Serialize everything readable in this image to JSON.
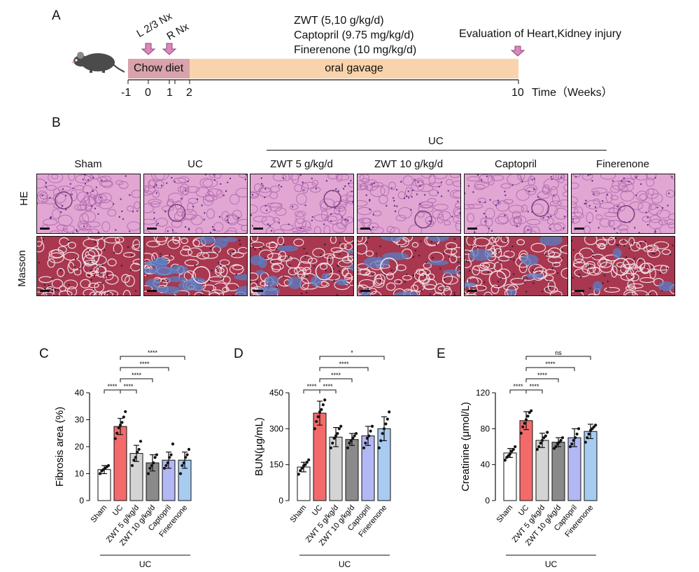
{
  "panels": {
    "a": "A",
    "b": "B",
    "c": "C",
    "d": "D",
    "e": "E"
  },
  "timeline": {
    "nx1": "L 2/3 Nx",
    "nx2": "R Nx",
    "drugs": [
      "ZWT (5,10 g/kg/d)",
      "Captopril (9.75 mg/kg/d)",
      "Finerenone (10 mg/kg/d)"
    ],
    "evaluation": "Evaluation of Heart,Kidney injury",
    "chow": "Chow diet",
    "gavage": "oral gavage",
    "ticks": [
      "-1",
      "0",
      "1",
      "2",
      "10"
    ],
    "axis_label": "Time（Weeks）",
    "colors": {
      "chow": "#d9a3ab",
      "gavage": "#f9d3ab",
      "arrow": "#dd86bb"
    }
  },
  "histology": {
    "group_label": "UC",
    "columns": [
      "Sham",
      "UC",
      "ZWT 5 g/kg/d",
      "ZWT 10 g/kg/d",
      "Captopril",
      "Finerenone"
    ],
    "rows": [
      "HE",
      "Masson"
    ],
    "colors": {
      "he": "#e2a6d3",
      "masson": "#a8374f",
      "fibrosis": "#5a7fc4"
    }
  },
  "chart_data": [
    {
      "type": "bar",
      "panel": "C",
      "ylabel": "Fibrosis area (%)",
      "ylim": [
        0,
        40
      ],
      "yticks": [
        "0",
        "10",
        "20",
        "30",
        "40"
      ],
      "categories": [
        "Sham",
        "UC",
        "ZWT 5 g/kg/d",
        "ZWT 10 g/kg/d",
        "Captopril",
        "Finerenone"
      ],
      "values": [
        11.5,
        27.5,
        17.5,
        14,
        15,
        15
      ],
      "errors": [
        1.5,
        3,
        3,
        3,
        3,
        3
      ],
      "points": [
        [
          10,
          11,
          11.5,
          12,
          12.5,
          13
        ],
        [
          23,
          25,
          27,
          28,
          29,
          31,
          33
        ],
        [
          13,
          15,
          16,
          18,
          19,
          22
        ],
        [
          10,
          12,
          13,
          14,
          16,
          17
        ],
        [
          12,
          13,
          14,
          16,
          17,
          21
        ],
        [
          10,
          13,
          14,
          16,
          17,
          19
        ]
      ],
      "group_label": "UC",
      "comparisons": [
        [
          "1",
          "5",
          "****"
        ],
        [
          "1",
          "4",
          "****"
        ],
        [
          "1",
          "3",
          "****"
        ],
        [
          "0",
          "1",
          "****"
        ],
        [
          "1",
          "2",
          "****"
        ]
      ]
    },
    {
      "type": "bar",
      "panel": "D",
      "ylabel": "BUN(μg/mL)",
      "ylim": [
        0,
        450
      ],
      "yticks": [
        "0",
        "150",
        "300",
        "450"
      ],
      "categories": [
        "Sham",
        "UC",
        "ZWT 5 g/kg/d",
        "ZWT 10 g/kg/d",
        "Captopril",
        "Finerenone"
      ],
      "values": [
        140,
        365,
        265,
        255,
        270,
        300
      ],
      "errors": [
        20,
        50,
        40,
        25,
        40,
        50
      ],
      "points": [
        [
          110,
          125,
          135,
          145,
          150,
          160,
          170
        ],
        [
          300,
          330,
          350,
          370,
          380,
          400,
          420
        ],
        [
          220,
          240,
          260,
          270,
          280,
          300,
          310
        ],
        [
          220,
          240,
          250,
          260,
          270,
          280
        ],
        [
          220,
          240,
          260,
          270,
          290,
          310
        ],
        [
          220,
          250,
          280,
          300,
          320,
          340,
          370
        ]
      ],
      "group_label": "UC",
      "comparisons": [
        [
          "1",
          "5",
          "*"
        ],
        [
          "1",
          "4",
          "****"
        ],
        [
          "1",
          "3",
          "****"
        ],
        [
          "0",
          "1",
          "****"
        ],
        [
          "1",
          "2",
          "****"
        ]
      ]
    },
    {
      "type": "bar",
      "panel": "E",
      "ylabel": "Creatinine (μmol/L)",
      "ylim": [
        0,
        120
      ],
      "yticks": [
        "0",
        "40",
        "80",
        "120"
      ],
      "categories": [
        "Sham",
        "UC",
        "ZWT 5 g/kg/d",
        "ZWT 10 g/kg/d",
        "Captopril",
        "Finerenone"
      ],
      "values": [
        53,
        89,
        67,
        65,
        70,
        77
      ],
      "errors": [
        5,
        10,
        8,
        5,
        10,
        8
      ],
      "points": [
        [
          45,
          48,
          50,
          52,
          55,
          57,
          60
        ],
        [
          75,
          82,
          86,
          90,
          94,
          98,
          100
        ],
        [
          57,
          60,
          64,
          67,
          70,
          72,
          76
        ],
        [
          58,
          60,
          63,
          65,
          67,
          70
        ],
        [
          60,
          63,
          67,
          70,
          74,
          80
        ],
        [
          65,
          70,
          74,
          78,
          80,
          82,
          84
        ]
      ],
      "group_label": "UC",
      "comparisons": [
        [
          "1",
          "5",
          "ns"
        ],
        [
          "1",
          "4",
          "****"
        ],
        [
          "1",
          "3",
          "****"
        ],
        [
          "0",
          "1",
          "****"
        ],
        [
          "1",
          "2",
          "****"
        ]
      ]
    }
  ],
  "bar_colors": [
    "#ffffff",
    "#f46a6a",
    "#d4d4d4",
    "#8a8a8a",
    "#b2b8f4",
    "#a8cbf0"
  ]
}
